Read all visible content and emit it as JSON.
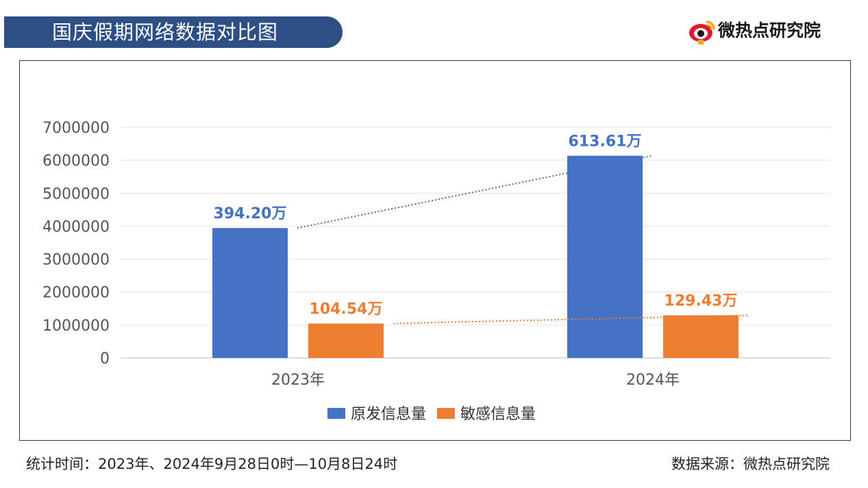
{
  "header": {
    "title": "国庆假期网络数据对比图",
    "brand": "微热点研究院"
  },
  "footer": {
    "time_range": "统计时间：2023年、2024年9月28日0时—10月8日24时",
    "source": "数据来源：微热点研究院"
  },
  "chart_data": {
    "type": "bar",
    "title": "国庆假期网络数据对比图",
    "categories": [
      "2023年",
      "2024年"
    ],
    "series": [
      {
        "name": "原发信息量",
        "values": [
          3942000,
          6136100
        ],
        "labels": [
          "394.20万",
          "613.61万"
        ],
        "color": "#4472c4"
      },
      {
        "name": "敏感信息量",
        "values": [
          1045400,
          1294300
        ],
        "labels": [
          "104.54万",
          "129.43万"
        ],
        "color": "#ed7d31"
      }
    ],
    "yticks": [
      "0",
      "1000000",
      "2000000",
      "3000000",
      "4000000",
      "5000000",
      "6000000",
      "7000000"
    ],
    "ylim": [
      0,
      7000000
    ],
    "grid": true,
    "trendlines": true,
    "legend": "bottom-center",
    "xlabel": "",
    "ylabel": ""
  }
}
